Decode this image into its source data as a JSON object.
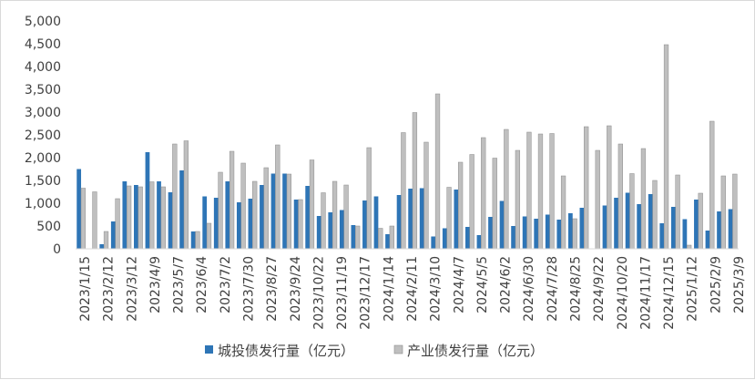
{
  "chart_data": {
    "type": "bar",
    "title": "",
    "xlabel": "",
    "ylabel": "",
    "ylim": [
      0,
      5000
    ],
    "y_ticks": [
      "0",
      "500",
      "1,000",
      "1,500",
      "2,000",
      "2,500",
      "3,000",
      "3,500",
      "4,000",
      "4,500",
      "5,000"
    ],
    "y_tick_values": [
      0,
      500,
      1000,
      1500,
      2000,
      2500,
      3000,
      3500,
      4000,
      4500,
      5000
    ],
    "x_tick_labels": [
      "2023/1/15",
      "2023/2/12",
      "2023/3/12",
      "2023/4/9",
      "2023/5/7",
      "2023/6/4",
      "2023/7/2",
      "2023/7/30",
      "2023/8/27",
      "2023/9/24",
      "2023/10/22",
      "2023/11/19",
      "2023/12/17",
      "2024/1/14",
      "2024/2/11",
      "2024/3/10",
      "2024/4/7",
      "2024/5/5",
      "2024/6/2",
      "2024/6/30",
      "2024/7/28",
      "2024/8/25",
      "2024/9/22",
      "2024/10/20",
      "2024/11/17",
      "2024/12/15",
      "2025/1/12",
      "2025/2/9",
      "2025/3/9"
    ],
    "grid": false,
    "legend_position": "bottom",
    "series": [
      {
        "name": "城投债发行量（亿元）",
        "color": "#2e75b6",
        "values": [
          1750,
          0,
          100,
          600,
          1480,
          1400,
          2120,
          1480,
          1240,
          1720,
          380,
          1150,
          1120,
          1480,
          1020,
          1100,
          1400,
          1650,
          1650,
          1080,
          1380,
          720,
          800,
          850,
          520,
          1060,
          1150,
          320,
          1180,
          1320,
          1330,
          270,
          450,
          1300,
          480,
          300,
          700,
          1050,
          500,
          710,
          660,
          750,
          640,
          780,
          900,
          0,
          950,
          1120,
          1230,
          980,
          1200,
          560,
          920,
          650,
          1080,
          400,
          820,
          870
        ]
      },
      {
        "name": "产业债发行量（亿元）",
        "color": "#bfbfbf",
        "values": [
          1330,
          1250,
          380,
          1100,
          1380,
          1360,
          1470,
          1360,
          2300,
          2370,
          380,
          560,
          1680,
          2140,
          1880,
          1480,
          1780,
          2280,
          1640,
          1080,
          1950,
          1230,
          1480,
          1400,
          500,
          2220,
          450,
          500,
          2550,
          2990,
          2340,
          3400,
          1350,
          1900,
          2070,
          2440,
          1990,
          2620,
          2160,
          2560,
          2520,
          2530,
          1600,
          660,
          2680,
          2160,
          2700,
          2300,
          1650,
          2200,
          1500,
          4480,
          1620,
          80,
          1220,
          2800,
          1600,
          1640
        ]
      }
    ]
  }
}
